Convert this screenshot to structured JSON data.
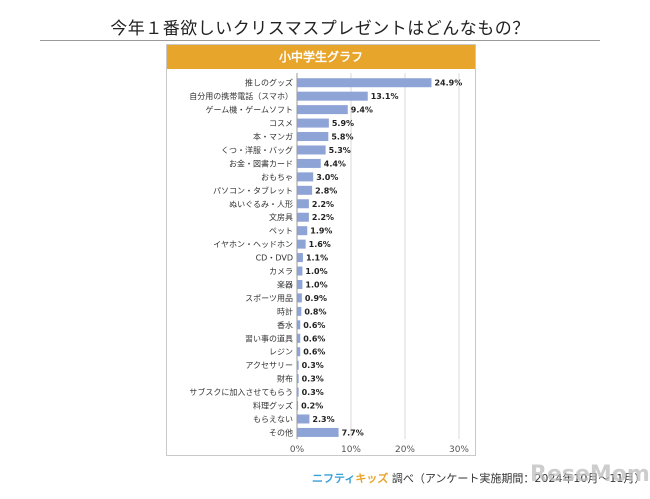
{
  "header": {
    "title": "今年１番欲しいクリスマスプレゼントはどんなもの？"
  },
  "panel": {
    "title": "小中学生グラフ"
  },
  "footer": {
    "brand_a": "ニフティ",
    "brand_b": "キッズ",
    "source": "調べ（アンケート実施期間：2024年10月～11月）"
  },
  "watermark": {
    "text": "ReseMom"
  },
  "colors": {
    "bar": "#8ea4d6",
    "header": "#e8a52c",
    "grid": "#d9d9d9"
  },
  "chart_data": {
    "type": "bar",
    "orientation": "horizontal",
    "title": "小中学生グラフ",
    "categories": [
      "推しのグッズ",
      "自分用の携帯電話（スマホ）",
      "ゲーム機・ゲームソフト",
      "コスメ",
      "本・マンガ",
      "くつ・洋服・バッグ",
      "お金・図書カード",
      "おもちゃ",
      "パソコン・タブレット",
      "ぬいぐるみ・人形",
      "文房具",
      "ペット",
      "イヤホン・ヘッドホン",
      "CD・DVD",
      "カメラ",
      "楽器",
      "スポーツ用品",
      "時計",
      "香水",
      "習い事の道具",
      "レジン",
      "アクセサリー",
      "財布",
      "サブスクに加入させてもらう",
      "料理グッズ",
      "もらえない",
      "その他"
    ],
    "values": [
      24.9,
      13.1,
      9.4,
      5.9,
      5.8,
      5.3,
      4.4,
      3.0,
      2.8,
      2.2,
      2.2,
      1.9,
      1.6,
      1.1,
      1.0,
      1.0,
      0.9,
      0.8,
      0.6,
      0.6,
      0.6,
      0.3,
      0.3,
      0.3,
      0.2,
      2.3,
      7.7
    ],
    "value_labels": [
      "24.9%",
      "13.1%",
      "9.4%",
      "5.9%",
      "5.8%",
      "5.3%",
      "4.4%",
      "3.0%",
      "2.8%",
      "2.2%",
      "2.2%",
      "1.9%",
      "1.6%",
      "1.1%",
      "1.0%",
      "1.0%",
      "0.9%",
      "0.8%",
      "0.6%",
      "0.6%",
      "0.6%",
      "0.3%",
      "0.3%",
      "0.3%",
      "0.2%",
      "2.3%",
      "7.7%"
    ],
    "xlim": [
      0,
      30
    ],
    "xticks": [
      "0%",
      "10%",
      "20%",
      "30%"
    ],
    "grid": true
  }
}
